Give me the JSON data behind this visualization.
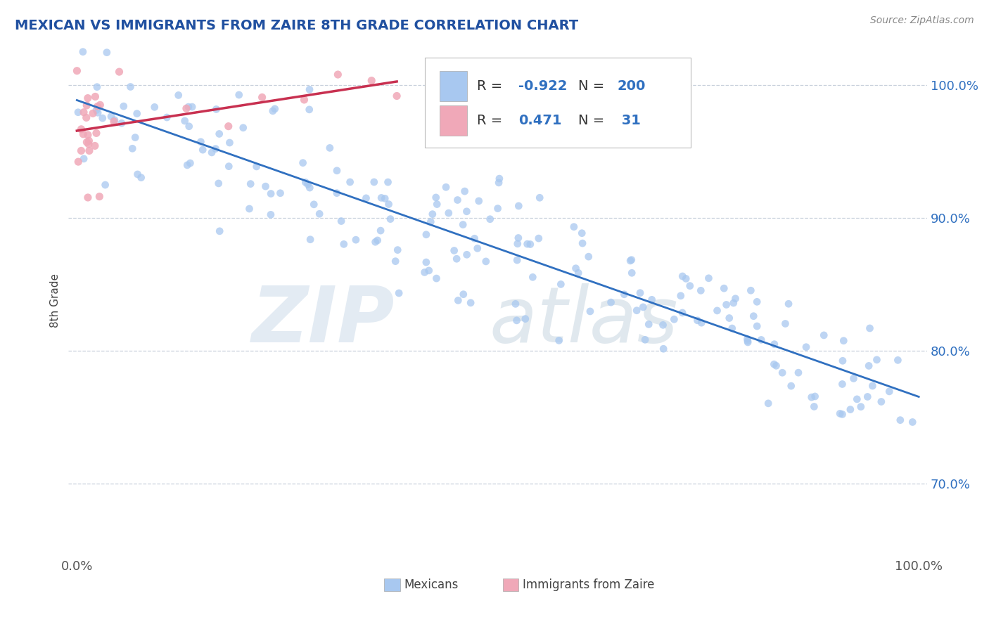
{
  "title": "MEXICAN VS IMMIGRANTS FROM ZAIRE 8TH GRADE CORRELATION CHART",
  "source_text": "Source: ZipAtlas.com",
  "ylabel": "8th Grade",
  "ytick_labels": [
    "70.0%",
    "80.0%",
    "90.0%",
    "100.0%"
  ],
  "ytick_values": [
    0.7,
    0.8,
    0.9,
    1.0
  ],
  "xlim": [
    -0.01,
    1.01
  ],
  "ylim": [
    0.645,
    1.03
  ],
  "blue_R": -0.922,
  "blue_N": 200,
  "pink_R": 0.471,
  "pink_N": 31,
  "blue_color": "#a8c8f0",
  "pink_color": "#f0a8b8",
  "blue_line_color": "#3070c0",
  "pink_line_color": "#c83050",
  "legend_label_blue": "Mexicans",
  "legend_label_pink": "Immigrants from Zaire",
  "title_color": "#2050a0",
  "grid_color": "#c8d0dc",
  "background_color": "#ffffff"
}
